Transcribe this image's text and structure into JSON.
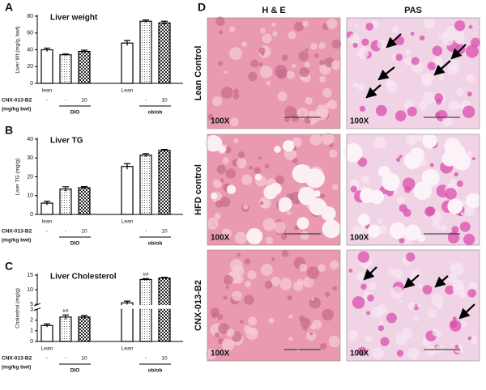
{
  "chart_data": [
    {
      "type": "bar",
      "panel": "A",
      "title": "Liver weight",
      "y_label": "Liver Wt (mg/g, bwt)",
      "categories": [
        "lean",
        null,
        null,
        "Lean",
        null,
        null
      ],
      "values": [
        40,
        34,
        38,
        48,
        74,
        72
      ],
      "errors": [
        2,
        1,
        1.5,
        3,
        1.5,
        2
      ],
      "fills": [
        "white",
        "dotted",
        "checked",
        "white",
        "dotted",
        "checked"
      ],
      "ylim": [
        0,
        80
      ],
      "yticks": [
        0,
        20,
        40,
        60,
        80
      ],
      "treatment_label": "CNX-013-B2",
      "treatment_unit": "(mg/kg bwt)",
      "doses": [
        "-",
        "-",
        "10",
        null,
        "-",
        "10"
      ],
      "groups": [
        "DIO",
        "ob/ob"
      ]
    },
    {
      "type": "bar",
      "panel": "B",
      "title": "Liver TG",
      "y_label": "Liver TG (mg/g)",
      "categories": [
        "lean",
        null,
        null,
        "Lean",
        null,
        null
      ],
      "values": [
        6,
        13.5,
        14.2,
        25.5,
        31.5,
        34
      ],
      "errors": [
        1,
        1.2,
        0.6,
        1.5,
        0.8,
        0.6
      ],
      "fills": [
        "white",
        "dotted",
        "checked",
        "white",
        "dotted",
        "checked"
      ],
      "ylim": [
        0,
        40
      ],
      "yticks": [
        0,
        10,
        20,
        30,
        40
      ],
      "treatment_label": "CNX-013-B2",
      "treatment_unit": "(mg/kg bwt)",
      "doses": [
        "-",
        "-",
        "10",
        null,
        "-",
        "10"
      ],
      "groups": [
        "DIO",
        "ob/ob"
      ]
    },
    {
      "type": "bar",
      "panel": "C",
      "title": "Liver Cholesterol",
      "y_label": "Cholestrol (mg/g)",
      "categories": [
        "Lean",
        null,
        null,
        "Lean",
        null,
        null
      ],
      "values": [
        1.5,
        2.3,
        2.3,
        5.5,
        13.5,
        14
      ],
      "errors": [
        0.15,
        0.2,
        0.15,
        0.6,
        0.3,
        0.25
      ],
      "annotations": [
        null,
        "##",
        null,
        null,
        "##",
        null
      ],
      "fills": [
        "white",
        "dotted",
        "checked",
        "white",
        "dotted",
        "checked"
      ],
      "ylim": [
        0,
        15
      ],
      "ybreak": [
        3,
        5
      ],
      "yticks": [
        0,
        1,
        2,
        3,
        5,
        10,
        15
      ],
      "treatment_label": "CNX-013-B2",
      "treatment_unit": "(mg/kg bwt)",
      "doses": [
        "-",
        "-",
        "10",
        null,
        "-",
        "10"
      ],
      "groups": [
        "DIO",
        "ob/ob"
      ]
    }
  ],
  "panel_d": {
    "letter": "D",
    "columns": [
      "H & E",
      "PAS"
    ],
    "rows": [
      "Lean Control",
      "HFD control",
      "CNX-013-B2"
    ],
    "magnification": "100X"
  }
}
